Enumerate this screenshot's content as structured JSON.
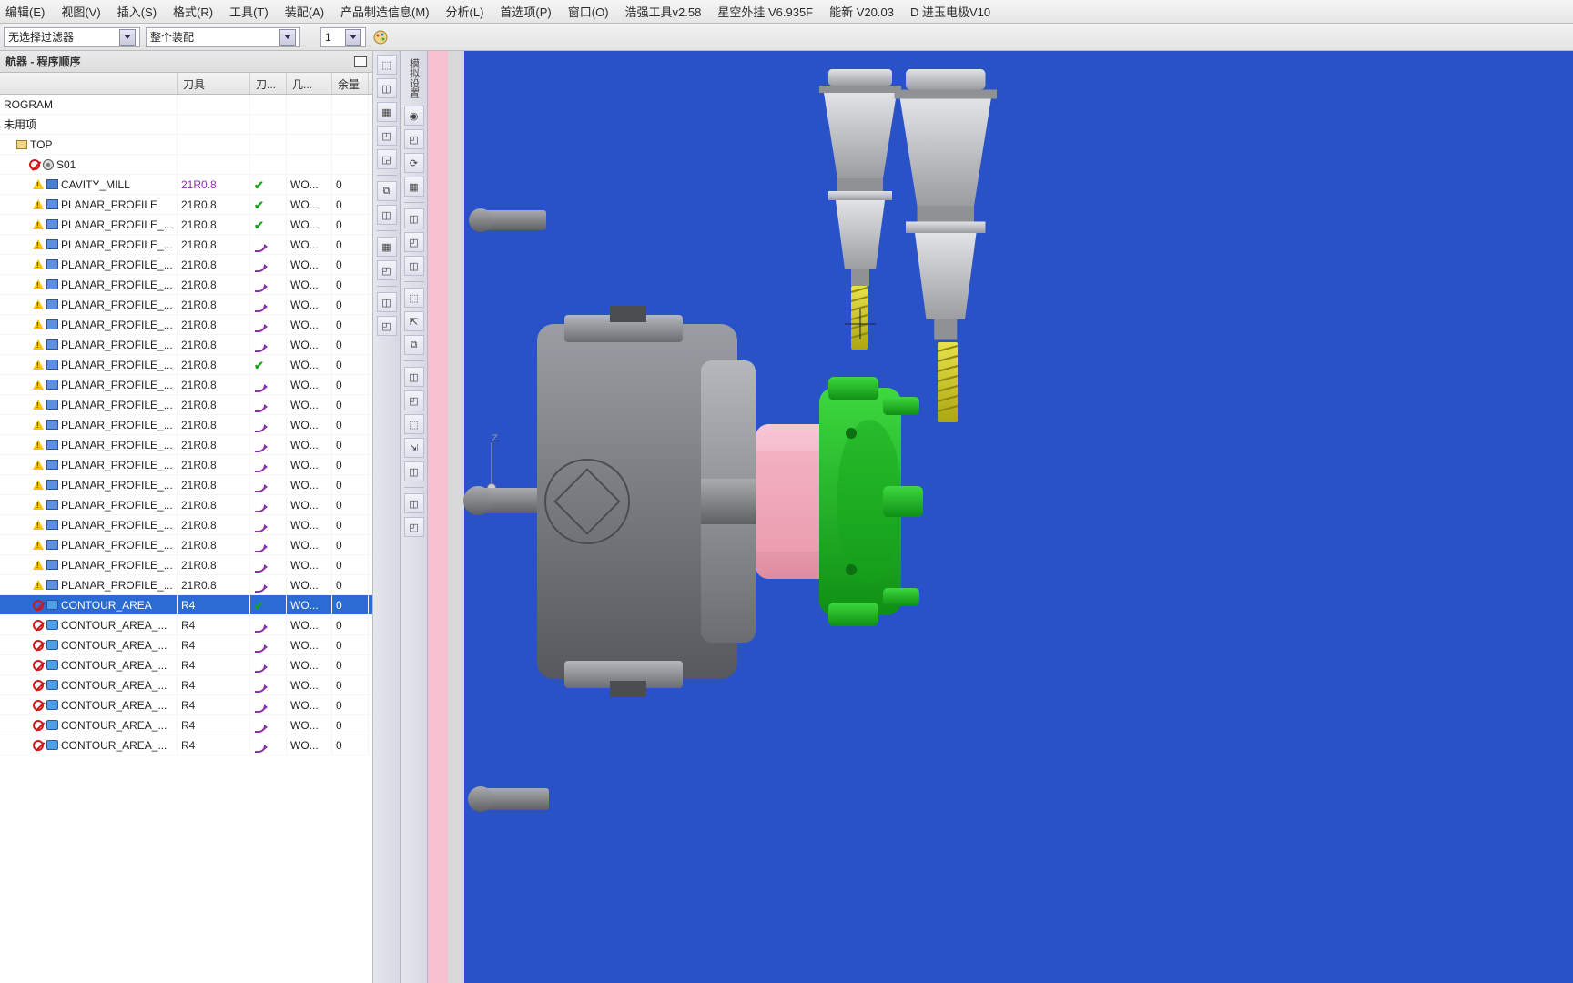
{
  "menu": {
    "items": [
      "编辑(E)",
      "视图(V)",
      "插入(S)",
      "格式(R)",
      "工具(T)",
      "装配(A)",
      "产品制造信息(M)",
      "分析(L)",
      "首选项(P)",
      "窗口(O)",
      "浩强工具v2.58",
      "星空外挂 V6.935F",
      "能新 V20.03",
      "D 进玉电极V10"
    ]
  },
  "filter": {
    "combo1": "无选择过滤器",
    "combo2": "整个装配",
    "combo3": "1"
  },
  "nav": {
    "title": "航器 - 程序顺序",
    "columns": [
      "",
      "刀具",
      "刀...",
      "几...",
      "余量"
    ],
    "top_rows": [
      {
        "indent": 0,
        "name": "ROGRAM"
      },
      {
        "indent": 0,
        "name": "未用项"
      },
      {
        "indent": 1,
        "name": "TOP",
        "pre_icons": [
          "box"
        ]
      },
      {
        "indent": 2,
        "name": "S01",
        "pre_icons": [
          "forbid",
          "disk"
        ]
      }
    ],
    "ops": [
      {
        "pre": [
          "warn",
          "opmill"
        ],
        "name": "CAVITY_MILL",
        "tool": "21R0.8",
        "tool_purple": true,
        "status": "check",
        "geom": "WO...",
        "c4": "0"
      },
      {
        "pre": [
          "warn",
          "op"
        ],
        "name": "PLANAR_PROFILE",
        "tool": "21R0.8",
        "status": "check",
        "geom": "WO...",
        "c4": "0"
      },
      {
        "pre": [
          "warn",
          "op"
        ],
        "name": "PLANAR_PROFILE_...",
        "tool": "21R0.8",
        "status": "check",
        "geom": "WO...",
        "c4": "0"
      },
      {
        "pre": [
          "warn",
          "op"
        ],
        "name": "PLANAR_PROFILE_...",
        "tool": "21R0.8",
        "status": "curve",
        "geom": "WO...",
        "c4": "0"
      },
      {
        "pre": [
          "warn",
          "op"
        ],
        "name": "PLANAR_PROFILE_...",
        "tool": "21R0.8",
        "status": "curve",
        "geom": "WO...",
        "c4": "0"
      },
      {
        "pre": [
          "warn",
          "op"
        ],
        "name": "PLANAR_PROFILE_...",
        "tool": "21R0.8",
        "status": "curve",
        "geom": "WO...",
        "c4": "0"
      },
      {
        "pre": [
          "warn",
          "op"
        ],
        "name": "PLANAR_PROFILE_...",
        "tool": "21R0.8",
        "status": "curve",
        "geom": "WO...",
        "c4": "0"
      },
      {
        "pre": [
          "warn",
          "op"
        ],
        "name": "PLANAR_PROFILE_...",
        "tool": "21R0.8",
        "status": "curve",
        "geom": "WO...",
        "c4": "0"
      },
      {
        "pre": [
          "warn",
          "op"
        ],
        "name": "PLANAR_PROFILE_...",
        "tool": "21R0.8",
        "status": "curve",
        "geom": "WO...",
        "c4": "0"
      },
      {
        "pre": [
          "warn",
          "op"
        ],
        "name": "PLANAR_PROFILE_...",
        "tool": "21R0.8",
        "status": "check",
        "geom": "WO...",
        "c4": "0"
      },
      {
        "pre": [
          "warn",
          "op"
        ],
        "name": "PLANAR_PROFILE_...",
        "tool": "21R0.8",
        "status": "curve",
        "geom": "WO...",
        "c4": "0"
      },
      {
        "pre": [
          "warn",
          "op"
        ],
        "name": "PLANAR_PROFILE_...",
        "tool": "21R0.8",
        "status": "curve",
        "geom": "WO...",
        "c4": "0"
      },
      {
        "pre": [
          "warn",
          "op"
        ],
        "name": "PLANAR_PROFILE_...",
        "tool": "21R0.8",
        "status": "curve",
        "geom": "WO...",
        "c4": "0"
      },
      {
        "pre": [
          "warn",
          "op"
        ],
        "name": "PLANAR_PROFILE_...",
        "tool": "21R0.8",
        "status": "curve",
        "geom": "WO...",
        "c4": "0"
      },
      {
        "pre": [
          "warn",
          "op"
        ],
        "name": "PLANAR_PROFILE_...",
        "tool": "21R0.8",
        "status": "curve",
        "geom": "WO...",
        "c4": "0"
      },
      {
        "pre": [
          "warn",
          "op"
        ],
        "name": "PLANAR_PROFILE_...",
        "tool": "21R0.8",
        "status": "curve",
        "geom": "WO...",
        "c4": "0"
      },
      {
        "pre": [
          "warn",
          "op"
        ],
        "name": "PLANAR_PROFILE_...",
        "tool": "21R0.8",
        "status": "curve",
        "geom": "WO...",
        "c4": "0"
      },
      {
        "pre": [
          "warn",
          "op"
        ],
        "name": "PLANAR_PROFILE_...",
        "tool": "21R0.8",
        "status": "curve",
        "geom": "WO...",
        "c4": "0"
      },
      {
        "pre": [
          "warn",
          "op"
        ],
        "name": "PLANAR_PROFILE_...",
        "tool": "21R0.8",
        "status": "curve",
        "geom": "WO...",
        "c4": "0"
      },
      {
        "pre": [
          "warn",
          "op"
        ],
        "name": "PLANAR_PROFILE_...",
        "tool": "21R0.8",
        "status": "curve",
        "geom": "WO...",
        "c4": "0"
      },
      {
        "pre": [
          "warn",
          "op"
        ],
        "name": "PLANAR_PROFILE_...",
        "tool": "21R0.8",
        "status": "curve",
        "geom": "WO...",
        "c4": "0"
      },
      {
        "pre": [
          "forbid",
          "opcontour"
        ],
        "name": "CONTOUR_AREA",
        "tool": "R4",
        "status": "check",
        "geom": "WO...",
        "c4": "0",
        "selected": true
      },
      {
        "pre": [
          "forbid",
          "opcontour"
        ],
        "name": "CONTOUR_AREA_...",
        "tool": "R4",
        "status": "curve",
        "geom": "WO...",
        "c4": "0"
      },
      {
        "pre": [
          "forbid",
          "opcontour"
        ],
        "name": "CONTOUR_AREA_...",
        "tool": "R4",
        "status": "curve",
        "geom": "WO...",
        "c4": "0"
      },
      {
        "pre": [
          "forbid",
          "opcontour"
        ],
        "name": "CONTOUR_AREA_...",
        "tool": "R4",
        "status": "curve",
        "geom": "WO...",
        "c4": "0"
      },
      {
        "pre": [
          "forbid",
          "opcontour"
        ],
        "name": "CONTOUR_AREA_...",
        "tool": "R4",
        "status": "curve",
        "geom": "WO...",
        "c4": "0"
      },
      {
        "pre": [
          "forbid",
          "opcontour"
        ],
        "name": "CONTOUR_AREA_...",
        "tool": "R4",
        "status": "curve",
        "geom": "WO...",
        "c4": "0"
      },
      {
        "pre": [
          "forbid",
          "opcontour"
        ],
        "name": "CONTOUR_AREA_...",
        "tool": "R4",
        "status": "curve",
        "geom": "WO...",
        "c4": "0"
      },
      {
        "pre": [
          "forbid",
          "opcontour"
        ],
        "name": "CONTOUR_AREA_...",
        "tool": "R4",
        "status": "curve",
        "geom": "WO...",
        "c4": "0"
      }
    ]
  },
  "vtoolbar1": {
    "items": [
      "⬚",
      "◫",
      "▦",
      "◰",
      "◲",
      "",
      "⧉",
      "◫",
      "",
      "▦",
      "◰",
      "",
      "◫",
      "◰"
    ]
  },
  "vtoolbar2": {
    "text": "模拟设置",
    "items": [
      "◉",
      "◰",
      "⟳",
      "▦",
      "",
      "◫",
      "◰",
      "◫",
      "",
      "⬚",
      "⇱",
      "⧉",
      "",
      "◫",
      "◰",
      "⬚",
      "⇲",
      "◫",
      "",
      "◫",
      "◰"
    ]
  },
  "viewport": {
    "bg_color": "#2a52c8",
    "chuck_color": "#6f7277",
    "chuck_light": "#9a9da3",
    "workpiece_pink": "#f1a6b7",
    "fixture_green": "#17b321",
    "toolholder_color": "#c7c9cc",
    "tool_tip_color": "#d6d02b",
    "bolt_color": "#7b7d80"
  }
}
